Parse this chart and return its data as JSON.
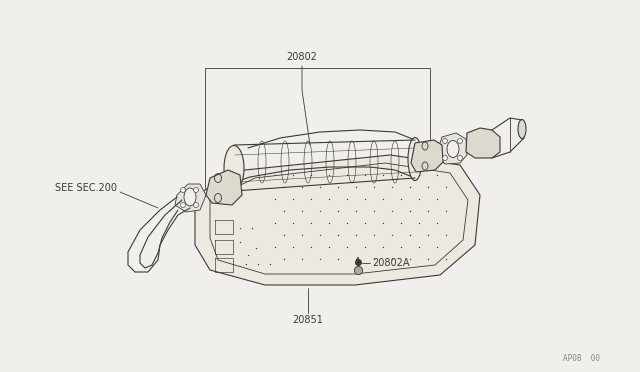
{
  "bg_color": "#f0efec",
  "line_color": "#3a3a3a",
  "label_color": "#3a3a3a",
  "watermark": "AP08  00",
  "fig_w": 6.4,
  "fig_h": 3.72,
  "dpi": 100
}
